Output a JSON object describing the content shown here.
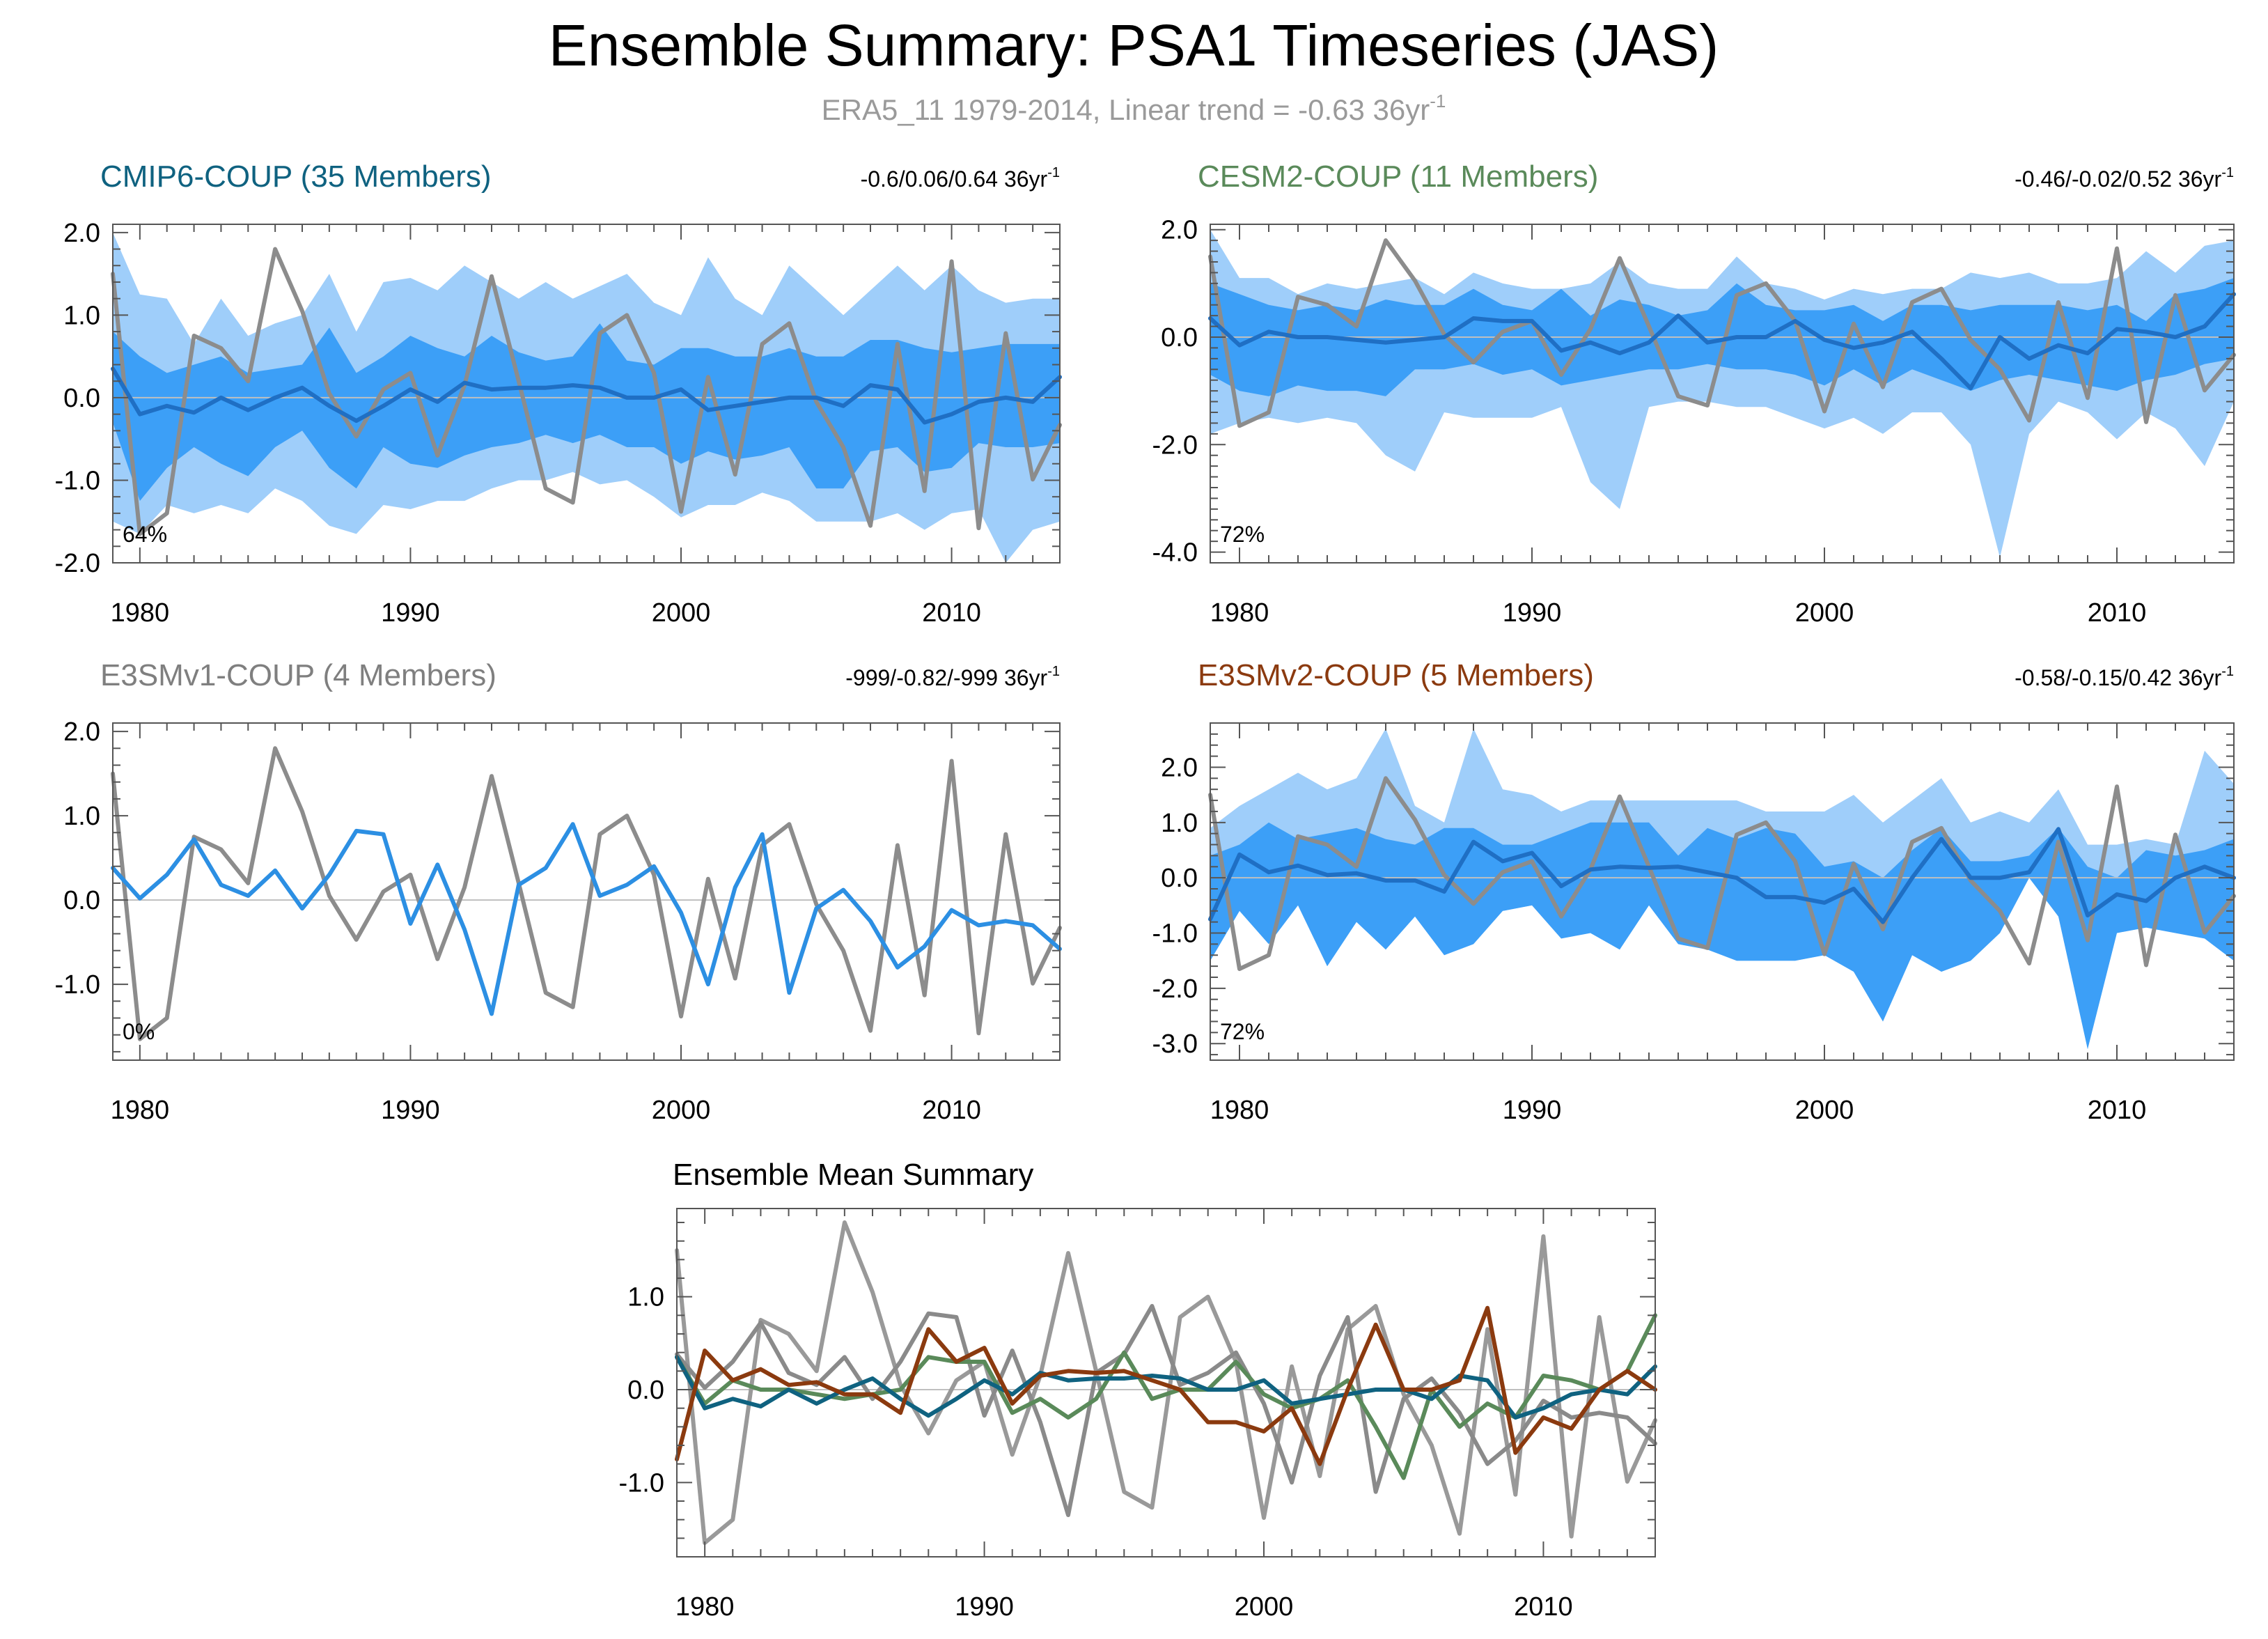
{
  "figure": {
    "title": "Ensemble Summary: PSA1 Timeseries (JAS)",
    "subtitle": "ERA5_11 1979-2014, Linear trend = -0.63 36yr",
    "subtitle_sup": "-1"
  },
  "colors": {
    "obs": "#8c8c8c",
    "shade_outer": "#9fcefa",
    "shade_inner": "#3c9ff7",
    "mean_line": "#1f6fc4",
    "e3smv1_line": "#2c8fe3",
    "cmip6": "#0f6280",
    "cesm2": "#5a8a5a",
    "e3smv1": "#7f7f7f",
    "e3smv2": "#8b3a0f",
    "zero_line": "#bfbfbf"
  },
  "chart_data": [
    {
      "id": "cmip6",
      "type": "line",
      "title": "CMIP6-COUP (35 Members)",
      "title_color": "#0f6280",
      "stats": "-0.6/0.06/0.64 36yr",
      "stats_sup": "-1",
      "corner_label": "64%",
      "xlim": [
        1979,
        2014
      ],
      "ylim": [
        -2.0,
        2.1
      ],
      "yticks": [
        -2.0,
        -1.0,
        0.0,
        1.0,
        2.0
      ],
      "ytick_labels": [
        "-2.0",
        "-1.0",
        "0.0",
        "1.0",
        "2.0"
      ],
      "xticks": [
        1980,
        1990,
        2000,
        2010
      ],
      "xtick_labels": [
        "1980",
        "1990",
        "2000",
        "2010"
      ],
      "outer_upper": [
        2.0,
        1.25,
        1.2,
        0.65,
        1.2,
        0.75,
        0.9,
        1.0,
        1.5,
        0.8,
        1.4,
        1.45,
        1.3,
        1.6,
        1.4,
        1.2,
        1.4,
        1.2,
        1.35,
        1.5,
        1.15,
        1.0,
        1.7,
        1.2,
        1.0,
        1.6,
        1.3,
        1.0,
        1.3,
        1.6,
        1.3,
        1.6,
        1.3,
        1.15,
        1.2,
        1.2
      ],
      "inner_upper": [
        0.8,
        0.5,
        0.3,
        0.4,
        0.5,
        0.3,
        0.35,
        0.4,
        0.85,
        0.3,
        0.5,
        0.75,
        0.6,
        0.5,
        0.75,
        0.55,
        0.45,
        0.5,
        0.9,
        0.45,
        0.4,
        0.6,
        0.6,
        0.5,
        0.5,
        0.6,
        0.5,
        0.5,
        0.7,
        0.7,
        0.6,
        0.55,
        0.6,
        0.65,
        0.65,
        0.65
      ],
      "inner_lower": [
        -0.3,
        -1.25,
        -0.85,
        -0.6,
        -0.8,
        -0.95,
        -0.6,
        -0.4,
        -0.85,
        -1.1,
        -0.6,
        -0.8,
        -0.85,
        -0.7,
        -0.6,
        -0.55,
        -0.45,
        -0.55,
        -0.45,
        -0.6,
        -0.6,
        -0.8,
        -0.65,
        -0.75,
        -0.7,
        -0.6,
        -1.1,
        -1.1,
        -0.65,
        -0.6,
        -0.9,
        -0.85,
        -0.55,
        -0.6,
        -0.6,
        -0.55
      ],
      "outer_lower": [
        -1.5,
        -1.65,
        -1.3,
        -1.4,
        -1.3,
        -1.4,
        -1.1,
        -1.25,
        -1.55,
        -1.65,
        -1.3,
        -1.35,
        -1.25,
        -1.25,
        -1.1,
        -1.0,
        -1.0,
        -0.9,
        -1.05,
        -1.0,
        -1.2,
        -1.45,
        -1.3,
        -1.3,
        -1.15,
        -1.25,
        -1.5,
        -1.5,
        -1.5,
        -1.4,
        -1.6,
        -1.4,
        -1.35,
        -2.0,
        -1.6,
        -1.5
      ],
      "mean": [
        0.35,
        -0.2,
        -0.1,
        -0.18,
        0.0,
        -0.15,
        0.0,
        0.12,
        -0.1,
        -0.28,
        -0.1,
        0.1,
        -0.05,
        0.18,
        0.1,
        0.12,
        0.12,
        0.15,
        0.12,
        0.0,
        0.0,
        0.1,
        -0.15,
        -0.1,
        -0.05,
        0.0,
        0.0,
        -0.1,
        0.15,
        0.1,
        -0.3,
        -0.2,
        -0.05,
        0.0,
        -0.05,
        0.25
      ],
      "obs": [
        1.5,
        -1.65,
        -1.4,
        0.75,
        0.6,
        0.2,
        1.8,
        1.05,
        0.05,
        -0.47,
        0.1,
        0.3,
        -0.7,
        0.15,
        1.47,
        0.2,
        -1.1,
        -1.27,
        0.78,
        1.0,
        0.3,
        -1.38,
        0.25,
        -0.93,
        0.65,
        0.9,
        -0.05,
        -0.6,
        -1.55,
        0.65,
        -1.13,
        1.65,
        -1.58,
        0.78,
        -0.99,
        -0.33
      ]
    },
    {
      "id": "cesm2",
      "type": "line",
      "title": "CESM2-COUP (11 Members)",
      "title_color": "#5a8a5a",
      "stats": "-0.46/-0.02/0.52 36yr",
      "stats_sup": "-1",
      "corner_label": "72%",
      "xlim": [
        1979,
        2014
      ],
      "ylim": [
        -4.2,
        2.1
      ],
      "yticks": [
        -4.0,
        -2.0,
        0.0,
        2.0
      ],
      "ytick_labels": [
        "-4.0",
        "-2.0",
        "0.0",
        "2.0"
      ],
      "xticks": [
        1980,
        1990,
        2000,
        2010
      ],
      "xtick_labels": [
        "1980",
        "1990",
        "2000",
        "2010"
      ],
      "outer_upper": [
        2.0,
        1.1,
        1.1,
        0.8,
        1.0,
        0.9,
        1.0,
        1.1,
        0.8,
        1.2,
        1.0,
        0.9,
        0.9,
        1.0,
        1.4,
        1.0,
        0.9,
        0.9,
        1.5,
        1.0,
        0.9,
        0.7,
        0.9,
        0.8,
        0.9,
        0.9,
        1.2,
        1.1,
        1.2,
        1.0,
        1.0,
        1.1,
        1.6,
        1.2,
        1.7,
        1.8
      ],
      "inner_upper": [
        1.0,
        0.8,
        0.6,
        0.5,
        0.6,
        0.5,
        0.7,
        0.6,
        0.6,
        0.9,
        0.6,
        0.5,
        0.9,
        0.4,
        0.7,
        0.6,
        0.4,
        0.5,
        1.0,
        0.6,
        0.5,
        0.5,
        0.6,
        0.3,
        0.6,
        0.6,
        0.5,
        0.6,
        0.6,
        0.6,
        0.5,
        0.6,
        0.3,
        0.8,
        0.9,
        1.1
      ],
      "inner_lower": [
        -0.7,
        -1.0,
        -1.1,
        -0.9,
        -1.0,
        -1.0,
        -1.1,
        -0.6,
        -0.6,
        -0.5,
        -0.7,
        -0.6,
        -0.9,
        -0.8,
        -0.7,
        -0.6,
        -0.6,
        -0.5,
        -0.6,
        -0.6,
        -0.7,
        -0.9,
        -0.6,
        -0.9,
        -0.6,
        -0.8,
        -1.0,
        -0.8,
        -0.7,
        -0.8,
        -0.9,
        -1.0,
        -0.8,
        -0.7,
        -0.5,
        -0.4
      ],
      "outer_lower": [
        -1.8,
        -1.6,
        -1.5,
        -1.6,
        -1.5,
        -1.6,
        -2.2,
        -2.5,
        -1.4,
        -1.5,
        -1.5,
        -1.5,
        -1.3,
        -2.7,
        -3.2,
        -1.3,
        -1.2,
        -1.2,
        -1.3,
        -1.3,
        -1.5,
        -1.7,
        -1.5,
        -1.8,
        -1.4,
        -1.4,
        -2.0,
        -4.1,
        -1.8,
        -1.2,
        -1.4,
        -1.9,
        -1.4,
        -1.7,
        -2.4,
        -1.2
      ],
      "mean": [
        0.35,
        -0.15,
        0.1,
        0.0,
        0.0,
        -0.05,
        -0.1,
        -0.05,
        0.0,
        0.35,
        0.3,
        0.3,
        -0.25,
        -0.1,
        -0.3,
        -0.1,
        0.4,
        -0.1,
        0.0,
        0.0,
        0.3,
        -0.05,
        -0.2,
        -0.1,
        0.1,
        -0.4,
        -0.95,
        0.0,
        -0.4,
        -0.15,
        -0.3,
        0.15,
        0.1,
        0.0,
        0.2,
        0.8
      ],
      "obs": [
        1.5,
        -1.65,
        -1.4,
        0.75,
        0.6,
        0.2,
        1.8,
        1.05,
        0.05,
        -0.47,
        0.1,
        0.3,
        -0.7,
        0.15,
        1.47,
        0.2,
        -1.1,
        -1.27,
        0.78,
        1.0,
        0.3,
        -1.38,
        0.25,
        -0.93,
        0.65,
        0.9,
        -0.05,
        -0.6,
        -1.55,
        0.65,
        -1.13,
        1.65,
        -1.58,
        0.78,
        -0.99,
        -0.33
      ]
    },
    {
      "id": "e3smv1",
      "type": "line",
      "title": "E3SMv1-COUP (4 Members)",
      "title_color": "#7f7f7f",
      "stats": "-999/-0.82/-999 36yr",
      "stats_sup": "-1",
      "corner_label": "0%",
      "xlim": [
        1979,
        2014
      ],
      "ylim": [
        -1.9,
        2.1
      ],
      "yticks": [
        -1.0,
        0.0,
        1.0,
        2.0
      ],
      "ytick_labels": [
        "-1.0",
        "0.0",
        "1.0",
        "2.0"
      ],
      "xticks": [
        1980,
        1990,
        2000,
        2010
      ],
      "xtick_labels": [
        "1980",
        "1990",
        "2000",
        "2010"
      ],
      "mean": [
        0.38,
        0.02,
        0.3,
        0.72,
        0.18,
        0.05,
        0.35,
        -0.1,
        0.3,
        0.82,
        0.78,
        -0.28,
        0.42,
        -0.35,
        -1.35,
        0.18,
        0.38,
        0.9,
        0.05,
        0.18,
        0.4,
        -0.15,
        -1.0,
        0.15,
        0.78,
        -1.1,
        -0.1,
        0.12,
        -0.25,
        -0.8,
        -0.55,
        -0.12,
        -0.3,
        -0.25,
        -0.3,
        -0.58
      ],
      "obs": [
        1.5,
        -1.65,
        -1.4,
        0.75,
        0.6,
        0.2,
        1.8,
        1.05,
        0.05,
        -0.47,
        0.1,
        0.3,
        -0.7,
        0.15,
        1.47,
        0.2,
        -1.1,
        -1.27,
        0.78,
        1.0,
        0.3,
        -1.38,
        0.25,
        -0.93,
        0.65,
        0.9,
        -0.05,
        -0.6,
        -1.55,
        0.65,
        -1.13,
        1.65,
        -1.58,
        0.78,
        -0.99,
        -0.33
      ]
    },
    {
      "id": "e3smv2",
      "type": "line",
      "title": "E3SMv2-COUP (5 Members)",
      "title_color": "#8b3a0f",
      "stats": "-0.58/-0.15/0.42 36yr",
      "stats_sup": "-1",
      "corner_label": "72%",
      "xlim": [
        1979,
        2014
      ],
      "ylim": [
        -3.3,
        2.8
      ],
      "yticks": [
        -3.0,
        -2.0,
        -1.0,
        0.0,
        1.0,
        2.0
      ],
      "ytick_labels": [
        "-3.0",
        "-2.0",
        "-1.0",
        "0.0",
        "1.0",
        "2.0"
      ],
      "xticks": [
        1980,
        1990,
        2000,
        2010
      ],
      "xtick_labels": [
        "1980",
        "1990",
        "2000",
        "2010"
      ],
      "outer_upper": [
        0.9,
        1.3,
        1.6,
        1.9,
        1.6,
        1.8,
        2.7,
        1.3,
        1.0,
        2.7,
        1.6,
        1.5,
        1.2,
        1.4,
        1.4,
        1.4,
        1.4,
        1.4,
        1.4,
        1.2,
        1.2,
        1.2,
        1.5,
        1.0,
        1.4,
        1.8,
        1.0,
        1.2,
        1.0,
        1.6,
        0.6,
        0.6,
        0.7,
        0.6,
        2.3,
        1.7
      ],
      "inner_upper": [
        0.4,
        0.6,
        1.0,
        0.7,
        0.8,
        0.9,
        0.7,
        0.6,
        0.9,
        0.9,
        0.6,
        0.6,
        0.8,
        1.0,
        1.0,
        1.0,
        0.4,
        0.9,
        0.7,
        0.9,
        0.8,
        0.2,
        0.3,
        0.0,
        0.5,
        0.9,
        0.3,
        0.3,
        0.4,
        0.9,
        0.2,
        0.0,
        0.5,
        0.4,
        0.5,
        0.7
      ],
      "inner_lower": [
        -1.5,
        -0.6,
        -1.2,
        -0.5,
        -1.6,
        -0.8,
        -1.3,
        -0.7,
        -1.4,
        -1.2,
        -0.6,
        -0.5,
        -1.1,
        -1.0,
        -1.3,
        -0.5,
        -1.2,
        -1.3,
        -1.5,
        -1.5,
        -1.5,
        -1.4,
        -1.7,
        -2.6,
        -1.4,
        -1.7,
        -1.5,
        -1.0,
        0.0,
        -0.7,
        -3.1,
        -1.0,
        -0.9,
        -1.0,
        -1.1,
        -1.5
      ],
      "outer_lower": [
        -1.5,
        -0.6,
        -1.2,
        -0.5,
        -1.6,
        -0.8,
        -1.3,
        -0.7,
        -1.4,
        -1.2,
        -0.6,
        -0.5,
        -1.1,
        -1.0,
        -1.3,
        -0.5,
        -1.2,
        -1.3,
        -1.5,
        -1.5,
        -1.5,
        -1.4,
        -1.7,
        -2.6,
        -1.4,
        -1.7,
        -1.5,
        -1.0,
        0.0,
        -0.7,
        -3.1,
        -1.0,
        -0.9,
        -1.0,
        -1.1,
        -1.5
      ],
      "mean": [
        -0.75,
        0.42,
        0.1,
        0.22,
        0.05,
        0.08,
        -0.05,
        -0.05,
        -0.25,
        0.65,
        0.3,
        0.45,
        -0.15,
        0.15,
        0.2,
        0.18,
        0.2,
        0.1,
        0.0,
        -0.35,
        -0.35,
        -0.45,
        -0.2,
        -0.8,
        0.0,
        0.7,
        0.0,
        0.0,
        0.1,
        0.88,
        -0.68,
        -0.3,
        -0.42,
        0.0,
        0.2,
        0.0
      ],
      "obs": [
        1.5,
        -1.65,
        -1.4,
        0.75,
        0.6,
        0.2,
        1.8,
        1.05,
        0.05,
        -0.47,
        0.1,
        0.3,
        -0.7,
        0.15,
        1.47,
        0.2,
        -1.1,
        -1.27,
        0.78,
        1.0,
        0.3,
        -1.38,
        0.25,
        -0.93,
        0.65,
        0.9,
        -0.05,
        -0.6,
        -1.55,
        0.65,
        -1.13,
        1.65,
        -1.58,
        0.78,
        -0.99,
        -0.33
      ]
    },
    {
      "id": "summary",
      "type": "line",
      "title": "Ensemble Mean Summary",
      "xlim": [
        1979,
        2014
      ],
      "ylim": [
        -1.8,
        1.95
      ],
      "yticks": [
        -1.0,
        0.0,
        1.0
      ],
      "ytick_labels": [
        "-1.0",
        "0.0",
        "1.0"
      ],
      "xticks": [
        1980,
        1990,
        2000,
        2010
      ],
      "xtick_labels": [
        "1980",
        "1990",
        "2000",
        "2010"
      ],
      "series": [
        {
          "name": "ERA5_11",
          "color": "#999999",
          "values": [
            1.5,
            -1.65,
            -1.4,
            0.75,
            0.6,
            0.2,
            1.8,
            1.05,
            0.05,
            -0.47,
            0.1,
            0.3,
            -0.7,
            0.15,
            1.47,
            0.2,
            -1.1,
            -1.27,
            0.78,
            1.0,
            0.3,
            -1.38,
            0.25,
            -0.93,
            0.65,
            0.9,
            -0.05,
            -0.6,
            -1.55,
            0.65,
            -1.13,
            1.65,
            -1.58,
            0.78,
            -0.99,
            -0.33
          ]
        },
        {
          "name": "E3SMv1-COUP",
          "color": "#8a8a8a",
          "values": [
            0.38,
            0.02,
            0.3,
            0.72,
            0.18,
            0.05,
            0.35,
            -0.1,
            0.3,
            0.82,
            0.78,
            -0.28,
            0.42,
            -0.35,
            -1.35,
            0.18,
            0.38,
            0.9,
            0.05,
            0.18,
            0.4,
            -0.15,
            -1.0,
            0.15,
            0.78,
            -1.1,
            -0.1,
            0.12,
            -0.25,
            -0.8,
            -0.55,
            -0.12,
            -0.3,
            -0.25,
            -0.3,
            -0.58
          ]
        },
        {
          "name": "CESM2-COUP",
          "color": "#5a8a5a",
          "values": [
            0.35,
            -0.15,
            0.1,
            0.0,
            0.0,
            -0.05,
            -0.1,
            -0.05,
            0.0,
            0.35,
            0.3,
            0.3,
            -0.25,
            -0.1,
            -0.3,
            -0.1,
            0.4,
            -0.1,
            0.0,
            0.0,
            0.3,
            -0.05,
            -0.2,
            -0.1,
            0.1,
            -0.4,
            -0.95,
            0.0,
            -0.4,
            -0.15,
            -0.3,
            0.15,
            0.1,
            0.0,
            0.2,
            0.8
          ]
        },
        {
          "name": "CMIP6-COUP",
          "color": "#0f6280",
          "values": [
            0.35,
            -0.2,
            -0.1,
            -0.18,
            0.0,
            -0.15,
            0.0,
            0.12,
            -0.1,
            -0.28,
            -0.1,
            0.1,
            -0.05,
            0.18,
            0.1,
            0.12,
            0.12,
            0.15,
            0.12,
            0.0,
            0.0,
            0.1,
            -0.15,
            -0.1,
            -0.05,
            0.0,
            0.0,
            -0.1,
            0.15,
            0.1,
            -0.3,
            -0.2,
            -0.05,
            0.0,
            -0.05,
            0.25
          ]
        },
        {
          "name": "E3SMv2-COUP",
          "color": "#8b3a0f",
          "values": [
            -0.75,
            0.42,
            0.1,
            0.22,
            0.05,
            0.08,
            -0.05,
            -0.05,
            -0.25,
            0.65,
            0.3,
            0.45,
            -0.15,
            0.15,
            0.2,
            0.18,
            0.2,
            0.1,
            0.0,
            -0.35,
            -0.35,
            -0.45,
            -0.2,
            -0.8,
            0.0,
            0.7,
            0.0,
            0.0,
            0.1,
            0.88,
            -0.68,
            -0.3,
            -0.42,
            0.0,
            0.2,
            0.0
          ]
        }
      ]
    }
  ]
}
